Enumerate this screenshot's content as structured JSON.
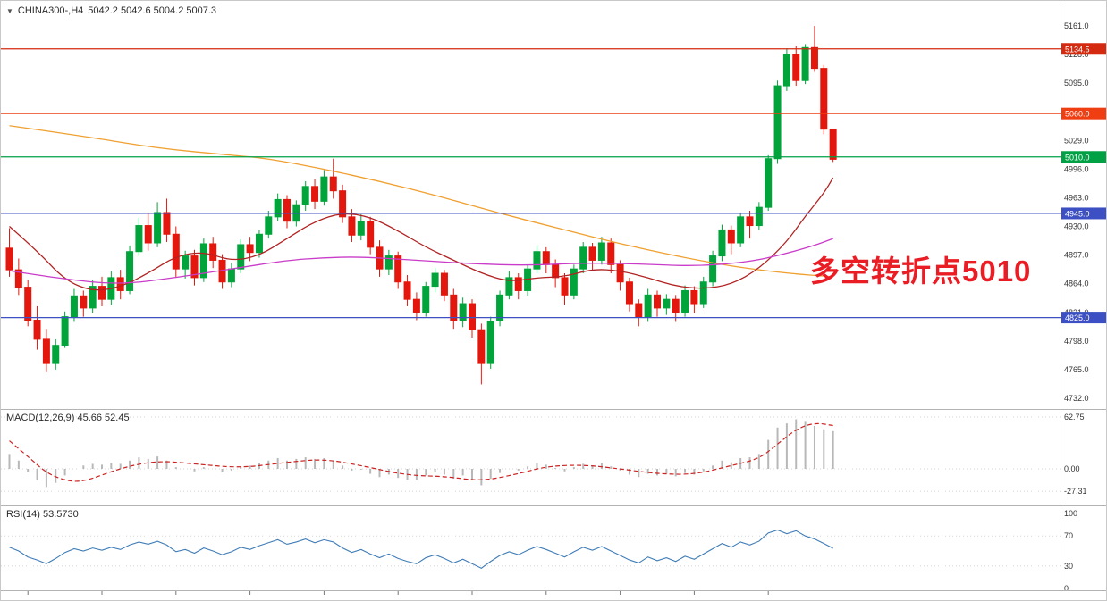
{
  "header": {
    "symbol": "CHINA300-,H4",
    "ohlc": "5042.2 5042.6 5004.2 5007.3"
  },
  "annotation": {
    "text": "多空转折点5010",
    "color": "#ea1c24"
  },
  "macd": {
    "label": "MACD(12,26,9) 45.66 52.45",
    "scale": [
      62.75,
      0,
      -27.31
    ]
  },
  "rsi": {
    "label": "RSI(14) 53.5730",
    "scale": [
      100,
      70,
      30,
      0
    ]
  },
  "price_axis": {
    "ticks": [
      5161,
      5128,
      5095,
      5062,
      5029,
      4996,
      4963,
      4930,
      4897,
      4864,
      4831,
      4798,
      4765,
      4732
    ]
  },
  "chart_data": {
    "type": "candlestick",
    "title": "CHINA300-,H4",
    "symbol": "CHINA300-",
    "timeframe": "H4",
    "last_quote": {
      "open": 5042.2,
      "high": 5042.6,
      "low": 5004.2,
      "close": 5007.3
    },
    "price_range": [
      4732,
      5161
    ],
    "up_color": "#00a43b",
    "down_color": "#e3170d",
    "horizontal_levels": [
      {
        "price": 5134.5,
        "color": "#d42a10"
      },
      {
        "price": 5060.0,
        "color": "#ef3e12"
      },
      {
        "price": 5010.0,
        "color": "#00a045"
      },
      {
        "price": 4945.0,
        "color": "#3d50c3"
      },
      {
        "price": 4825.0,
        "color": "#3d50c3"
      }
    ],
    "ohlc": [
      [
        4905,
        4928,
        4872,
        4880
      ],
      [
        4880,
        4893,
        4851,
        4860
      ],
      [
        4860,
        4868,
        4815,
        4822
      ],
      [
        4822,
        4838,
        4788,
        4800
      ],
      [
        4800,
        4812,
        4762,
        4772
      ],
      [
        4772,
        4800,
        4765,
        4793
      ],
      [
        4793,
        4832,
        4790,
        4826
      ],
      [
        4826,
        4858,
        4820,
        4850
      ],
      [
        4850,
        4856,
        4826,
        4836
      ],
      [
        4836,
        4868,
        4830,
        4861
      ],
      [
        4861,
        4872,
        4838,
        4846
      ],
      [
        4846,
        4878,
        4840,
        4871
      ],
      [
        4871,
        4880,
        4846,
        4856
      ],
      [
        4856,
        4908,
        4852,
        4901
      ],
      [
        4901,
        4940,
        4896,
        4931
      ],
      [
        4931,
        4945,
        4902,
        4911
      ],
      [
        4911,
        4958,
        4906,
        4946
      ],
      [
        4946,
        4962,
        4912,
        4921
      ],
      [
        4921,
        4930,
        4872,
        4881
      ],
      [
        4881,
        4902,
        4870,
        4896
      ],
      [
        4896,
        4903,
        4862,
        4871
      ],
      [
        4871,
        4916,
        4866,
        4910
      ],
      [
        4910,
        4918,
        4882,
        4891
      ],
      [
        4891,
        4898,
        4858,
        4866
      ],
      [
        4866,
        4888,
        4860,
        4881
      ],
      [
        4881,
        4915,
        4876,
        4909
      ],
      [
        4909,
        4918,
        4890,
        4900
      ],
      [
        4900,
        4926,
        4894,
        4921
      ],
      [
        4921,
        4948,
        4916,
        4941
      ],
      [
        4941,
        4968,
        4936,
        4961
      ],
      [
        4961,
        4966,
        4928,
        4936
      ],
      [
        4936,
        4960,
        4930,
        4955
      ],
      [
        4955,
        4982,
        4948,
        4976
      ],
      [
        4976,
        4985,
        4950,
        4959
      ],
      [
        4959,
        4995,
        4954,
        4987
      ],
      [
        4987,
        5008,
        4962,
        4971
      ],
      [
        4971,
        4978,
        4934,
        4941
      ],
      [
        4941,
        4950,
        4912,
        4920
      ],
      [
        4920,
        4944,
        4914,
        4936
      ],
      [
        4936,
        4941,
        4898,
        4906
      ],
      [
        4906,
        4914,
        4872,
        4881
      ],
      [
        4881,
        4903,
        4874,
        4896
      ],
      [
        4896,
        4901,
        4858,
        4866
      ],
      [
        4866,
        4874,
        4838,
        4846
      ],
      [
        4846,
        4854,
        4822,
        4831
      ],
      [
        4831,
        4866,
        4826,
        4861
      ],
      [
        4861,
        4882,
        4854,
        4876
      ],
      [
        4876,
        4880,
        4844,
        4851
      ],
      [
        4851,
        4858,
        4812,
        4821
      ],
      [
        4821,
        4848,
        4814,
        4841
      ],
      [
        4841,
        4846,
        4802,
        4811
      ],
      [
        4811,
        4818,
        4748,
        4772
      ],
      [
        4772,
        4826,
        4766,
        4821
      ],
      [
        4821,
        4856,
        4815,
        4851
      ],
      [
        4851,
        4878,
        4846,
        4871
      ],
      [
        4871,
        4876,
        4846,
        4856
      ],
      [
        4856,
        4886,
        4850,
        4881
      ],
      [
        4881,
        4908,
        4876,
        4901
      ],
      [
        4901,
        4906,
        4876,
        4886
      ],
      [
        4886,
        4892,
        4860,
        4871
      ],
      [
        4871,
        4876,
        4840,
        4851
      ],
      [
        4851,
        4886,
        4846,
        4881
      ],
      [
        4881,
        4912,
        4876,
        4906
      ],
      [
        4906,
        4911,
        4880,
        4891
      ],
      [
        4891,
        4918,
        4886,
        4911
      ],
      [
        4911,
        4916,
        4876,
        4886
      ],
      [
        4886,
        4891,
        4856,
        4866
      ],
      [
        4866,
        4871,
        4832,
        4841
      ],
      [
        4841,
        4846,
        4815,
        4826
      ],
      [
        4826,
        4858,
        4820,
        4851
      ],
      [
        4851,
        4856,
        4826,
        4836
      ],
      [
        4836,
        4852,
        4828,
        4846
      ],
      [
        4846,
        4851,
        4820,
        4831
      ],
      [
        4831,
        4862,
        4826,
        4856
      ],
      [
        4856,
        4861,
        4830,
        4841
      ],
      [
        4841,
        4872,
        4836,
        4866
      ],
      [
        4866,
        4902,
        4861,
        4896
      ],
      [
        4896,
        4932,
        4890,
        4926
      ],
      [
        4926,
        4931,
        4898,
        4911
      ],
      [
        4911,
        4946,
        4906,
        4941
      ],
      [
        4941,
        4948,
        4916,
        4931
      ],
      [
        4931,
        4958,
        4926,
        4952
      ],
      [
        4952,
        5012,
        4948,
        5008
      ],
      [
        5008,
        5098,
        5002,
        5092
      ],
      [
        5092,
        5135,
        5086,
        5128
      ],
      [
        5128,
        5138,
        5092,
        5098
      ],
      [
        5098,
        5140,
        5094,
        5136
      ],
      [
        5136,
        5161,
        5108,
        5112
      ],
      [
        5112,
        5116,
        5036,
        5042
      ],
      [
        5042.2,
        5042.6,
        5004.2,
        5007.3
      ]
    ],
    "moving_averages": [
      {
        "name": "ma-slow-orange",
        "color": "#f0a030",
        "points": [
          [
            0,
            5046
          ],
          [
            8,
            5034
          ],
          [
            16,
            5020
          ],
          [
            24,
            5012
          ],
          [
            28,
            5008
          ],
          [
            34,
            4996
          ],
          [
            40,
            4982
          ],
          [
            46,
            4966
          ],
          [
            53,
            4945
          ],
          [
            60,
            4926
          ],
          [
            66,
            4910
          ],
          [
            72,
            4896
          ],
          [
            78,
            4884
          ],
          [
            84,
            4876
          ],
          [
            89,
            4872
          ]
        ]
      },
      {
        "name": "ma-mid-crimson",
        "color": "#b22222",
        "points": [
          [
            0,
            4930
          ],
          [
            3,
            4902
          ],
          [
            6,
            4868
          ],
          [
            9,
            4855
          ],
          [
            12,
            4860
          ],
          [
            15,
            4876
          ],
          [
            18,
            4896
          ],
          [
            21,
            4901
          ],
          [
            24,
            4890
          ],
          [
            27,
            4896
          ],
          [
            30,
            4916
          ],
          [
            33,
            4936
          ],
          [
            36,
            4946
          ],
          [
            39,
            4941
          ],
          [
            42,
            4925
          ],
          [
            45,
            4906
          ],
          [
            48,
            4891
          ],
          [
            51,
            4876
          ],
          [
            54,
            4866
          ],
          [
            57,
            4871
          ],
          [
            60,
            4872
          ],
          [
            63,
            4881
          ],
          [
            66,
            4879
          ],
          [
            69,
            4871
          ],
          [
            72,
            4861
          ],
          [
            75,
            4858
          ],
          [
            78,
            4863
          ],
          [
            81,
            4881
          ],
          [
            84,
            4912
          ],
          [
            86,
            4942
          ],
          [
            88,
            4968
          ],
          [
            89,
            4986
          ]
        ]
      },
      {
        "name": "ma-fast-magenta",
        "color": "#c93cc9",
        "points": [
          [
            0,
            4879
          ],
          [
            6,
            4869
          ],
          [
            12,
            4863
          ],
          [
            18,
            4871
          ],
          [
            24,
            4881
          ],
          [
            30,
            4891
          ],
          [
            34,
            4894
          ],
          [
            38,
            4895
          ],
          [
            44,
            4891
          ],
          [
            50,
            4887
          ],
          [
            56,
            4885
          ],
          [
            62,
            4888
          ],
          [
            68,
            4887
          ],
          [
            74,
            4884
          ],
          [
            80,
            4889
          ],
          [
            84,
            4899
          ],
          [
            87,
            4908
          ],
          [
            89,
            4916
          ]
        ]
      }
    ],
    "indicators": {
      "macd": {
        "histogram_color": "#b8b8b8",
        "signal_color": "#cc2222",
        "range": [
          -27.31,
          62.75
        ],
        "histogram": [
          18,
          10,
          -4,
          -14,
          -22,
          -17,
          -8,
          0,
          4,
          6,
          5,
          7,
          6,
          10,
          14,
          12,
          15,
          10,
          2,
          0,
          -3,
          2,
          0,
          -4,
          -2,
          3,
          4,
          7,
          10,
          13,
          10,
          12,
          14,
          12,
          13,
          10,
          4,
          -2,
          -1,
          -6,
          -10,
          -7,
          -11,
          -13,
          -14,
          -8,
          -4,
          -7,
          -12,
          -8,
          -13,
          -20,
          -12,
          -5,
          0,
          -2,
          3,
          7,
          5,
          1,
          -3,
          2,
          6,
          4,
          7,
          3,
          -2,
          -7,
          -10,
          -6,
          -8,
          -6,
          -9,
          -5,
          -7,
          -3,
          4,
          10,
          8,
          13,
          14,
          18,
          35,
          50,
          55,
          60,
          58,
          52,
          48,
          45.66
        ],
        "signal_points": [
          [
            0,
            34
          ],
          [
            2,
            15
          ],
          [
            4,
            -5
          ],
          [
            6,
            -14
          ],
          [
            8,
            -16
          ],
          [
            12,
            1
          ],
          [
            16,
            10
          ],
          [
            20,
            6
          ],
          [
            25,
            1
          ],
          [
            30,
            8
          ],
          [
            34,
            12
          ],
          [
            38,
            4
          ],
          [
            43,
            -8
          ],
          [
            47,
            -9
          ],
          [
            51,
            -15
          ],
          [
            55,
            -6
          ],
          [
            58,
            3
          ],
          [
            62,
            5
          ],
          [
            66,
            0
          ],
          [
            70,
            -6
          ],
          [
            74,
            -7
          ],
          [
            78,
            4
          ],
          [
            81,
            12
          ],
          [
            83,
            30
          ],
          [
            85,
            48
          ],
          [
            87,
            56
          ],
          [
            89,
            52.45
          ]
        ]
      },
      "rsi": {
        "line_color": "#3f7cb6",
        "levels": [
          70,
          30
        ],
        "values": [
          55,
          50,
          42,
          38,
          33,
          40,
          48,
          53,
          50,
          54,
          51,
          55,
          52,
          58,
          62,
          59,
          63,
          58,
          49,
          52,
          47,
          54,
          50,
          45,
          49,
          55,
          52,
          57,
          61,
          65,
          59,
          62,
          66,
          61,
          65,
          62,
          54,
          48,
          52,
          46,
          41,
          46,
          40,
          36,
          33,
          41,
          45,
          40,
          34,
          39,
          33,
          27,
          36,
          44,
          49,
          45,
          51,
          56,
          52,
          47,
          42,
          49,
          55,
          51,
          56,
          50,
          44,
          38,
          34,
          42,
          37,
          41,
          36,
          43,
          39,
          46,
          53,
          60,
          55,
          62,
          58,
          63,
          74,
          78,
          73,
          77,
          70,
          66,
          60,
          53.57
        ]
      }
    }
  }
}
